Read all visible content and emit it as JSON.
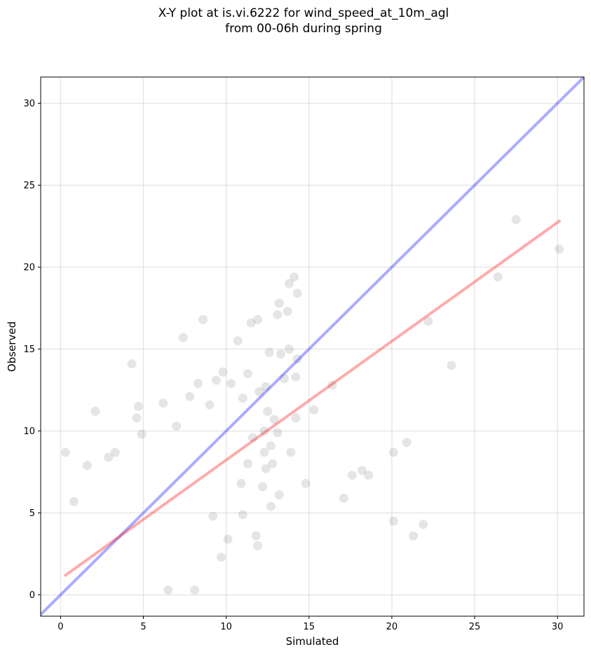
{
  "title": {
    "line1": "X-Y plot at is.vi.6222 for wind_speed_at_10m_agl",
    "line2": "from 00-06h during spring"
  },
  "chart_data": {
    "type": "scatter",
    "title": "X-Y plot at is.vi.6222 for wind_speed_at_10m_agl from 00-06h during spring",
    "xlabel": "Simulated",
    "ylabel": "Observed",
    "xlim": [
      -1.2,
      31.6
    ],
    "ylim": [
      -1.3,
      31.6
    ],
    "xticks": [
      0,
      5,
      10,
      15,
      20,
      25,
      30
    ],
    "yticks": [
      0,
      5,
      10,
      15,
      20,
      25,
      30
    ],
    "grid": true,
    "colors": {
      "points": "#000000",
      "one_to_one_line": "#0000ff",
      "fit_line": "#ff0000"
    },
    "lines": [
      {
        "kind": "one_to_one",
        "color": "#0000ff",
        "x": [
          -1.2,
          31.6
        ],
        "y": [
          -1.2,
          31.6
        ]
      },
      {
        "kind": "regression_fit",
        "color": "#ff0000",
        "x": [
          0.3,
          30.1
        ],
        "y": [
          1.2,
          22.8
        ]
      }
    ],
    "series": [
      {
        "points": [
          [
            0.3,
            8.7
          ],
          [
            2.1,
            11.2
          ],
          [
            4.3,
            14.1
          ],
          [
            7.4,
            15.7
          ],
          [
            8.6,
            16.8
          ],
          [
            10.7,
            15.5
          ],
          [
            11.5,
            16.6
          ],
          [
            11.9,
            16.8
          ],
          [
            12.6,
            14.8
          ],
          [
            13.2,
            17.8
          ],
          [
            13.1,
            17.1
          ],
          [
            13.7,
            17.3
          ],
          [
            13.8,
            19.0
          ],
          [
            14.1,
            19.4
          ],
          [
            14.3,
            18.4
          ],
          [
            13.3,
            14.7
          ],
          [
            13.8,
            15.0
          ],
          [
            12.4,
            12.7
          ],
          [
            14.3,
            14.4
          ],
          [
            13.5,
            13.2
          ],
          [
            14.2,
            13.3
          ],
          [
            12.5,
            11.2
          ],
          [
            14.2,
            10.8
          ],
          [
            13.9,
            8.7
          ],
          [
            12.8,
            8.0
          ],
          [
            13.2,
            6.1
          ],
          [
            12.7,
            5.4
          ],
          [
            12.2,
            6.6
          ],
          [
            11.8,
            3.6
          ],
          [
            11.9,
            3.0
          ],
          [
            12.4,
            7.7
          ],
          [
            12.7,
            9.1
          ],
          [
            15.3,
            11.3
          ],
          [
            16.4,
            12.8
          ],
          [
            14.8,
            6.8
          ],
          [
            17.1,
            5.9
          ],
          [
            17.6,
            7.3
          ],
          [
            18.2,
            7.6
          ],
          [
            18.6,
            7.3
          ],
          [
            20.1,
            8.7
          ],
          [
            20.9,
            9.3
          ],
          [
            20.1,
            4.5
          ],
          [
            21.3,
            3.6
          ],
          [
            21.9,
            4.3
          ],
          [
            22.2,
            16.7
          ],
          [
            23.6,
            14.0
          ],
          [
            26.4,
            19.4
          ],
          [
            27.5,
            22.9
          ],
          [
            30.1,
            21.1
          ],
          [
            9.7,
            2.3
          ],
          [
            8.1,
            0.3
          ],
          [
            6.5,
            0.3
          ],
          [
            10.1,
            3.4
          ],
          [
            9.2,
            4.8
          ],
          [
            8.3,
            12.9
          ],
          [
            9.4,
            13.1
          ],
          [
            10.3,
            12.9
          ],
          [
            11.0,
            12.0
          ],
          [
            7.8,
            12.1
          ],
          [
            6.2,
            11.7
          ],
          [
            4.7,
            11.5
          ],
          [
            4.6,
            10.8
          ],
          [
            0.8,
            5.7
          ],
          [
            1.6,
            7.9
          ],
          [
            2.9,
            8.4
          ],
          [
            3.3,
            8.7
          ],
          [
            4.9,
            9.8
          ],
          [
            9.8,
            13.6
          ],
          [
            11.3,
            13.5
          ],
          [
            12.0,
            12.4
          ],
          [
            12.3,
            10.0
          ],
          [
            11.6,
            9.6
          ],
          [
            11.3,
            8.0
          ],
          [
            10.9,
            6.8
          ],
          [
            11.0,
            4.9
          ],
          [
            12.3,
            8.7
          ],
          [
            13.1,
            9.9
          ],
          [
            12.9,
            10.7
          ],
          [
            9.0,
            11.6
          ],
          [
            7.0,
            10.3
          ]
        ]
      }
    ]
  }
}
